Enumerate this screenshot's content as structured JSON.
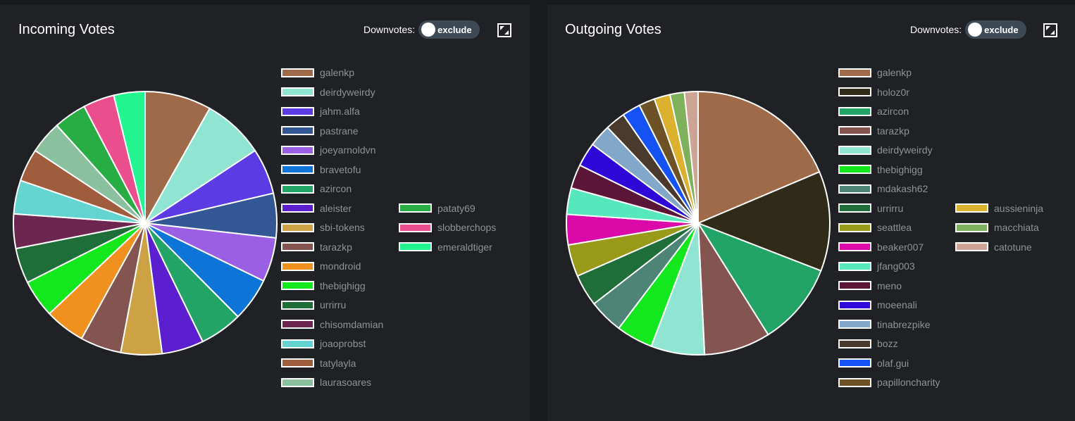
{
  "panels": [
    {
      "id": "incoming",
      "title": "Incoming Votes",
      "toggle": {
        "label": "Downvotes:",
        "value": "exclude"
      },
      "expand_icon": "expand-icon"
    },
    {
      "id": "outgoing",
      "title": "Outgoing Votes",
      "toggle": {
        "label": "Downvotes:",
        "value": "exclude"
      },
      "expand_icon": "expand-icon"
    }
  ],
  "chart_data": [
    {
      "type": "pie",
      "title": "Incoming Votes",
      "legend_position": "right",
      "series": [
        {
          "name": "galenkp",
          "value": 8.1,
          "color": "#9f6a4a"
        },
        {
          "name": "deirdyweirdy",
          "value": 7.5,
          "color": "#8fe5d2"
        },
        {
          "name": "jahm.alfa",
          "value": 5.6,
          "color": "#5b3be4"
        },
        {
          "name": "pastrane",
          "value": 5.4,
          "color": "#335794"
        },
        {
          "name": "joeyarnoldvn",
          "value": 5.4,
          "color": "#9a5fe4"
        },
        {
          "name": "bravetofu",
          "value": 5.3,
          "color": "#0d74d8"
        },
        {
          "name": "azircon",
          "value": 5.2,
          "color": "#21a466"
        },
        {
          "name": "aleister",
          "value": 5.1,
          "color": "#5b1fd0"
        },
        {
          "name": "sbi-tokens",
          "value": 5.0,
          "color": "#cca244"
        },
        {
          "name": "tarazkp",
          "value": 5.0,
          "color": "#835450"
        },
        {
          "name": "mondroid",
          "value": 4.9,
          "color": "#f0901f"
        },
        {
          "name": "thebighigg",
          "value": 4.6,
          "color": "#12e81d"
        },
        {
          "name": "urrirru",
          "value": 4.3,
          "color": "#1f6e3a"
        },
        {
          "name": "chisomdamian",
          "value": 4.2,
          "color": "#6c2650"
        },
        {
          "name": "joaoprobst",
          "value": 4.1,
          "color": "#64d4d0"
        },
        {
          "name": "tatylayla",
          "value": 4.0,
          "color": "#a05d3e"
        },
        {
          "name": "laurasoares",
          "value": 4.0,
          "color": "#8bc09e"
        },
        {
          "name": "pataty69",
          "value": 4.0,
          "color": "#28ac44"
        },
        {
          "name": "slobberchops",
          "value": 3.8,
          "color": "#ea4e8c"
        },
        {
          "name": "emeraldtiger",
          "value": 3.8,
          "color": "#22f58f"
        }
      ]
    },
    {
      "type": "pie",
      "title": "Outgoing Votes",
      "legend_position": "right",
      "series": [
        {
          "name": "galenkp",
          "value": 19.0,
          "color": "#9f6a4a"
        },
        {
          "name": "holoz0r",
          "value": 12.5,
          "color": "#302b19"
        },
        {
          "name": "azircon",
          "value": 10.4,
          "color": "#21a466"
        },
        {
          "name": "tarazkp",
          "value": 8.3,
          "color": "#835450"
        },
        {
          "name": "deirdyweirdy",
          "value": 6.7,
          "color": "#8fe5d2"
        },
        {
          "name": "thebighigg",
          "value": 4.6,
          "color": "#12e81d"
        },
        {
          "name": "mdakash62",
          "value": 4.3,
          "color": "#4d8475"
        },
        {
          "name": "urrirru",
          "value": 4.0,
          "color": "#1f6e3a"
        },
        {
          "name": "seattlea",
          "value": 4.0,
          "color": "#9a9a1a"
        },
        {
          "name": "beaker007",
          "value": 3.8,
          "color": "#da09a7"
        },
        {
          "name": "jfang003",
          "value": 3.3,
          "color": "#56e7bc"
        },
        {
          "name": "meno",
          "value": 3.0,
          "color": "#5a1537"
        },
        {
          "name": "moeenali",
          "value": 3.0,
          "color": "#2d08d6"
        },
        {
          "name": "tinabrezpike",
          "value": 2.8,
          "color": "#82a7c9"
        },
        {
          "name": "bozz",
          "value": 2.5,
          "color": "#4a3a2e"
        },
        {
          "name": "olaf.gui",
          "value": 2.3,
          "color": "#1552f4"
        },
        {
          "name": "papilloncharity",
          "value": 2.0,
          "color": "#6c5226"
        },
        {
          "name": "aussieninja",
          "value": 2.0,
          "color": "#dcb12d"
        },
        {
          "name": "macchiata",
          "value": 1.8,
          "color": "#7fb05c"
        },
        {
          "name": "catotune",
          "value": 1.7,
          "color": "#cea497"
        }
      ]
    }
  ]
}
